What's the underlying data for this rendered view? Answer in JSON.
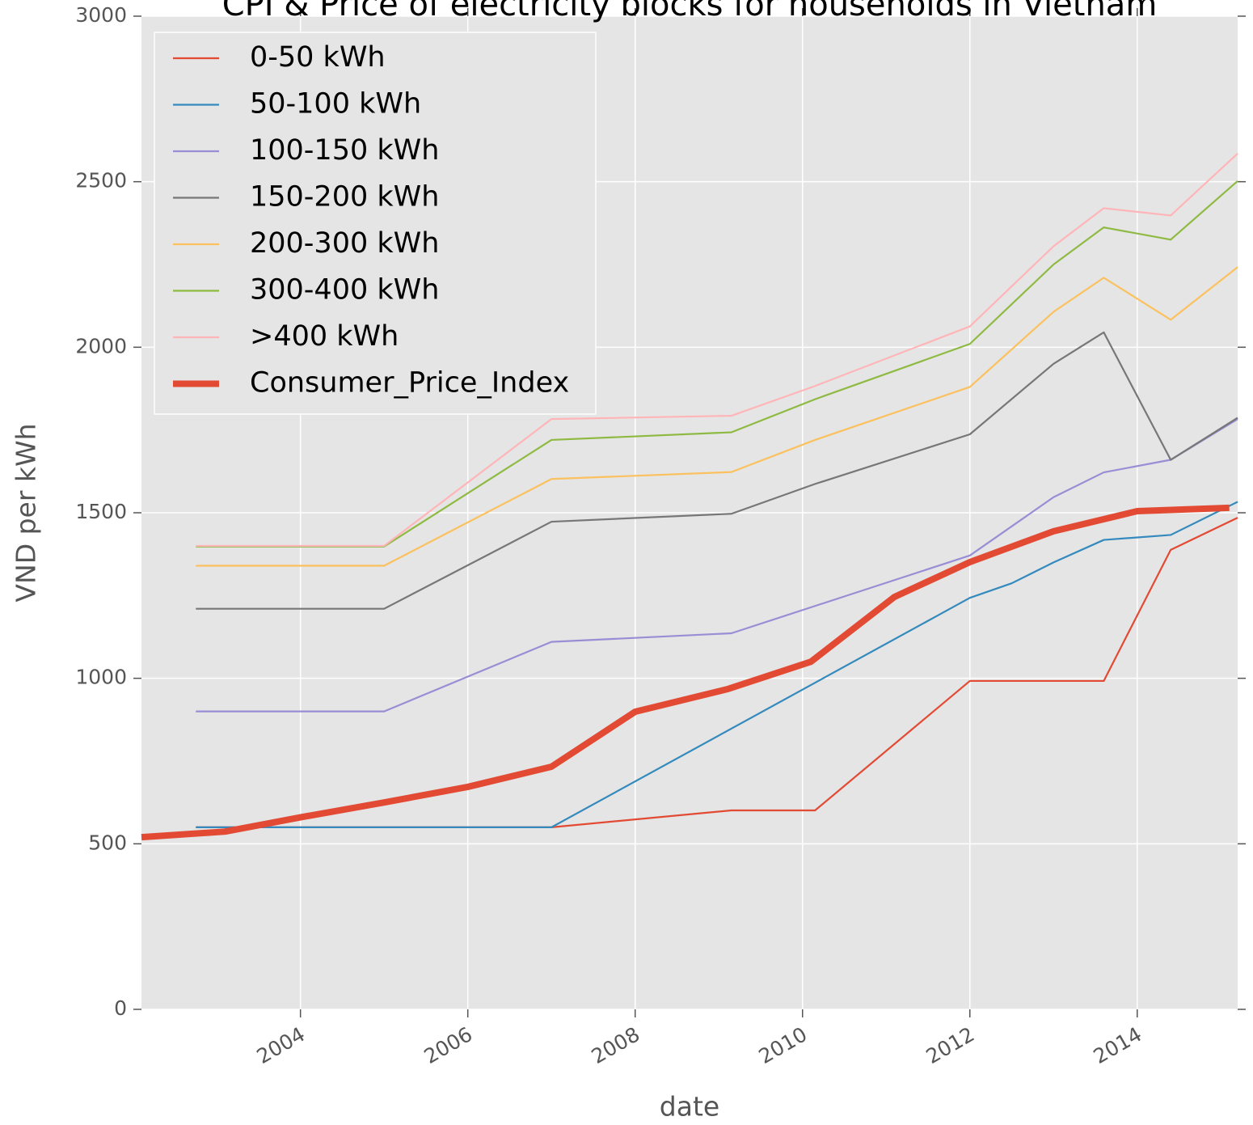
{
  "chart_data": {
    "type": "line",
    "title": "CPI & Price of electricity blocks for households in Vietnam",
    "x_label": "date",
    "y_label": "VND per kWh",
    "xlim": [
      2002.1,
      2015.2
    ],
    "ylim": [
      0,
      3000
    ],
    "xticks": [
      2004,
      2006,
      2008,
      2010,
      2012,
      2014
    ],
    "yticks": [
      0,
      500,
      1000,
      1500,
      2000,
      2500,
      3000
    ],
    "grid": true,
    "legend": "upper left",
    "series": [
      {
        "name": "0-50 kWh",
        "color": "#E24A33",
        "x": [
          2002.75,
          2005.0,
          2007.0,
          2009.15,
          2010.15,
          2012.0,
          2013.6,
          2014.4,
          2015.2
        ],
        "values": [
          550,
          550,
          550,
          601,
          601,
          992,
          992,
          1388,
          1485
        ]
      },
      {
        "name": "50-100 kWh",
        "color": "#348ABD",
        "x": [
          2002.75,
          2007.0,
          2012.0,
          2012.5,
          2013.0,
          2013.6,
          2014.4,
          2015.2
        ],
        "values": [
          550,
          550,
          1243,
          1287,
          1350,
          1418,
          1433,
          1533
        ]
      },
      {
        "name": "100-150 kWh",
        "color": "#988ED5",
        "x": [
          2002.75,
          2005.0,
          2007.0,
          2009.15,
          2012.0,
          2013.0,
          2013.6,
          2014.4,
          2015.2
        ],
        "values": [
          900,
          900,
          1110,
          1136,
          1371,
          1547,
          1622,
          1660,
          1783
        ]
      },
      {
        "name": "150-200 kWh",
        "color": "#777777",
        "x": [
          2002.75,
          2005.0,
          2007.0,
          2009.15,
          2010.15,
          2012.0,
          2013.0,
          2013.6,
          2014.4,
          2015.2
        ],
        "values": [
          1210,
          1210,
          1473,
          1497,
          1587,
          1737,
          1950,
          2045,
          1660,
          1787
        ]
      },
      {
        "name": "200-300 kWh",
        "color": "#FBC15E",
        "x": [
          2002.75,
          2005.0,
          2007.0,
          2009.15,
          2010.15,
          2012.0,
          2013.0,
          2013.6,
          2014.4,
          2015.2
        ],
        "values": [
          1340,
          1340,
          1602,
          1623,
          1720,
          1880,
          2107,
          2210,
          2083,
          2242
        ]
      },
      {
        "name": "300-400 kWh",
        "color": "#8EBA42",
        "x": [
          2002.75,
          2005.0,
          2007.0,
          2009.15,
          2010.15,
          2012.0,
          2013.0,
          2013.6,
          2014.4,
          2015.2
        ],
        "values": [
          1398,
          1398,
          1720,
          1743,
          1843,
          2010,
          2250,
          2362,
          2325,
          2502
        ]
      },
      {
        "name": ">400 kWh",
        "color": "#FFB5B8",
        "x": [
          2002.75,
          2005.0,
          2007.0,
          2009.15,
          2010.15,
          2012.0,
          2013.0,
          2013.6,
          2014.4,
          2015.2
        ],
        "values": [
          1400,
          1400,
          1783,
          1793,
          1883,
          2063,
          2305,
          2420,
          2398,
          2585
        ]
      },
      {
        "name": "Consumer_Price_Index",
        "color": "#E24A33",
        "width": 8,
        "x": [
          2002.1,
          2003.1,
          2004.0,
          2005.0,
          2006.0,
          2007.0,
          2008.0,
          2009.1,
          2010.1,
          2011.1,
          2012.0,
          2013.0,
          2014.0,
          2015.1
        ],
        "values": [
          520,
          537,
          580,
          625,
          672,
          733,
          899,
          967,
          1050,
          1246,
          1351,
          1444,
          1505,
          1515
        ]
      }
    ]
  }
}
